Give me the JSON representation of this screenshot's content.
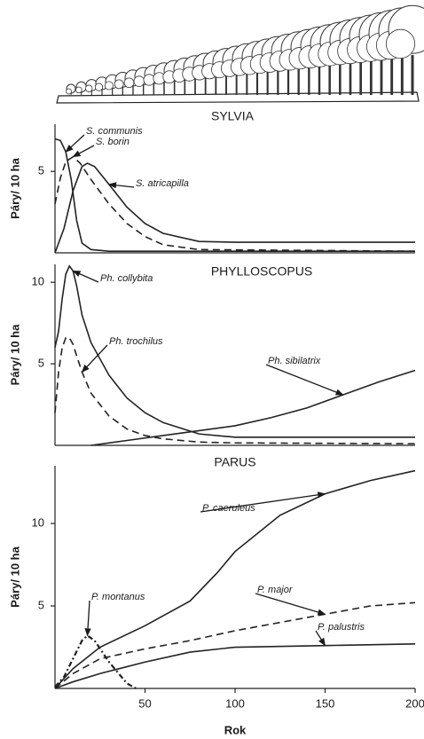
{
  "chart_data": [
    {
      "type": "line",
      "title": "SYLVIA",
      "ylabel": "Páry/ 10 ha",
      "xlim": [
        0,
        200
      ],
      "ylim": [
        0,
        7.9
      ],
      "yticks": [
        5
      ],
      "series": [
        {
          "name": "S. communis",
          "color": "#222222",
          "dash": "solid",
          "x": [
            0,
            3,
            6,
            9,
            12,
            15,
            20,
            30,
            200
          ],
          "values": [
            7,
            6.9,
            6.2,
            4.5,
            2,
            0.6,
            0.2,
            0.1,
            0.1
          ]
        },
        {
          "name": "S. borin",
          "color": "#222222",
          "dash": "dashed",
          "x": [
            0,
            3,
            6,
            10,
            14,
            20,
            30,
            40,
            50,
            60,
            80,
            200
          ],
          "values": [
            3,
            4.6,
            5.6,
            5.9,
            5.5,
            4.5,
            3,
            1.8,
            1,
            0.5,
            0.2,
            0.1
          ]
        },
        {
          "name": "S. atricapilla",
          "color": "#222222",
          "dash": "solid",
          "x": [
            0,
            5,
            10,
            15,
            18,
            22,
            30,
            40,
            50,
            60,
            80,
            100,
            200
          ],
          "values": [
            0,
            1.5,
            3.8,
            5.3,
            5.5,
            5.3,
            4.2,
            2.8,
            1.8,
            1.2,
            0.7,
            0.65,
            0.65
          ]
        }
      ]
    },
    {
      "type": "line",
      "title": "PHYLLOSCOPUS",
      "ylabel": "Páry/ 10 ha",
      "xlim": [
        0,
        200
      ],
      "ylim": [
        0,
        11.1
      ],
      "yticks": [
        5,
        10
      ],
      "series": [
        {
          "name": "Ph. collybita",
          "color": "#222222",
          "dash": "solid",
          "x": [
            0,
            2,
            4,
            6,
            8,
            10,
            12,
            15,
            20,
            30,
            40,
            50,
            60,
            80,
            100,
            150,
            200
          ],
          "values": [
            6,
            7,
            9,
            10.5,
            11,
            10.7,
            9.8,
            8,
            6.3,
            4.3,
            2.9,
            2,
            1.4,
            0.7,
            0.5,
            0.5,
            0.5
          ]
        },
        {
          "name": "Ph. trochilus",
          "color": "#222222",
          "dash": "dashed",
          "x": [
            0,
            2,
            4,
            6,
            8,
            10,
            12,
            15,
            20,
            30,
            40,
            50,
            60,
            80,
            100,
            200
          ],
          "values": [
            2,
            4.5,
            6,
            6.6,
            6.6,
            6.2,
            5.5,
            4.5,
            3.2,
            1.8,
            1,
            0.6,
            0.4,
            0.2,
            0.15,
            0.1
          ]
        },
        {
          "name": "Ph. sibilatrix",
          "color": "#222222",
          "dash": "solid",
          "x": [
            20,
            40,
            60,
            80,
            100,
            120,
            140,
            160,
            180,
            200
          ],
          "values": [
            0,
            0.3,
            0.6,
            0.9,
            1.2,
            1.7,
            2.3,
            3.1,
            3.9,
            4.6
          ]
        }
      ]
    },
    {
      "type": "line",
      "title": "PARUS",
      "ylabel": "Páry/ 10 ha",
      "xlabel": "Rok",
      "xlim": [
        0,
        200
      ],
      "xticks": [
        50,
        100,
        150,
        200
      ],
      "ylim": [
        0,
        13.5
      ],
      "yticks": [
        5,
        10
      ],
      "series": [
        {
          "name": "P. caeruleus",
          "color": "#222222",
          "dash": "solid",
          "x": [
            0,
            10,
            25,
            50,
            75,
            90,
            100,
            125,
            150,
            175,
            200
          ],
          "values": [
            0,
            1.2,
            2.5,
            3.8,
            5.3,
            7,
            8.3,
            10.5,
            11.8,
            12.6,
            13.2
          ]
        },
        {
          "name": "P. major",
          "color": "#222222",
          "dash": "dashed",
          "x": [
            0,
            10,
            25,
            50,
            75,
            100,
            125,
            150,
            175,
            200
          ],
          "values": [
            0,
            0.9,
            1.8,
            2.4,
            2.9,
            3.5,
            4,
            4.5,
            5,
            5.2
          ]
        },
        {
          "name": "P. palustris",
          "color": "#222222",
          "dash": "solid",
          "x": [
            0,
            10,
            25,
            50,
            75,
            100,
            150,
            200
          ],
          "values": [
            0,
            0.4,
            0.9,
            1.6,
            2.2,
            2.5,
            2.6,
            2.7
          ]
        },
        {
          "name": "P. montanus",
          "color": "#222222",
          "dash": "dashdot",
          "x": [
            0,
            5,
            10,
            15,
            18,
            22,
            30,
            40,
            45
          ],
          "values": [
            0.1,
            0.7,
            1.8,
            2.9,
            3.2,
            2.9,
            1.6,
            0.3,
            0
          ]
        }
      ]
    }
  ]
}
